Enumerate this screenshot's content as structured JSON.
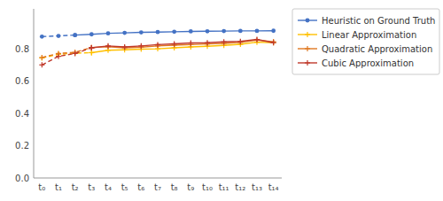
{
  "chart_data": {
    "type": "line",
    "categories": [
      "t₀",
      "t₁",
      "t₂",
      "t₃",
      "t₄",
      "t₅",
      "t₆",
      "t₇",
      "t₈",
      "t₉",
      "t₁₀",
      "t₁₁",
      "t₁₂",
      "t₁₃",
      "t₁₄"
    ],
    "series": [
      {
        "color": "#4472c4",
        "line_style": "dashed",
        "marker": "circle",
        "values": [
          0.878,
          0.882,
          0.887,
          null,
          null,
          null,
          null,
          null,
          null,
          null,
          null,
          null,
          null,
          null,
          null
        ]
      },
      {
        "name": "Heuristic on Ground Truth",
        "color": "#4472c4",
        "line_style": "solid",
        "marker": "circle",
        "values": [
          null,
          null,
          0.887,
          0.892,
          0.898,
          0.901,
          0.904,
          0.906,
          0.908,
          0.91,
          0.911,
          0.912,
          0.913,
          0.913,
          0.914
        ]
      },
      {
        "color": "#ffc000",
        "line_style": "dashed",
        "marker": "plus",
        "values": [
          0.745,
          0.768,
          0.775,
          0.778,
          null,
          null,
          null,
          null,
          null,
          null,
          null,
          null,
          null,
          null,
          null
        ]
      },
      {
        "name": "Linear Approximation",
        "color": "#ffc000",
        "line_style": "solid",
        "marker": "plus",
        "values": [
          null,
          null,
          null,
          0.778,
          0.793,
          0.796,
          0.8,
          0.802,
          0.808,
          0.814,
          0.818,
          0.823,
          0.83,
          0.843,
          0.84
        ]
      },
      {
        "color": "#e07820",
        "line_style": "dashed",
        "marker": "plus",
        "values": [
          0.748,
          0.773,
          0.78,
          0.81,
          null,
          null,
          null,
          null,
          null,
          null,
          null,
          null,
          null,
          null,
          null
        ]
      },
      {
        "name": "Quadratic Approximation",
        "color": "#e07820",
        "line_style": "solid",
        "marker": "plus",
        "values": [
          null,
          null,
          null,
          0.81,
          0.815,
          0.808,
          0.812,
          0.82,
          0.825,
          0.828,
          0.832,
          0.836,
          0.842,
          0.856,
          0.846
        ]
      },
      {
        "color": "#c0392b",
        "line_style": "dashed",
        "marker": "plus",
        "values": [
          0.702,
          0.755,
          0.773,
          0.808,
          null,
          null,
          null,
          null,
          null,
          null,
          null,
          null,
          null,
          null,
          null
        ]
      },
      {
        "name": "Cubic Approximation",
        "color": "#c0392b",
        "line_style": "solid",
        "marker": "plus",
        "values": [
          null,
          null,
          null,
          0.808,
          0.82,
          0.814,
          0.82,
          0.828,
          0.833,
          0.838,
          0.84,
          0.845,
          0.848,
          0.86,
          0.84
        ]
      }
    ],
    "ylim": [
      0.0,
      1.05
    ],
    "yticks": [
      {
        "value": 0.0,
        "label": "0.0"
      },
      0.2,
      0.4,
      0.6,
      0.8
    ],
    "grid": false,
    "legend": "right"
  }
}
